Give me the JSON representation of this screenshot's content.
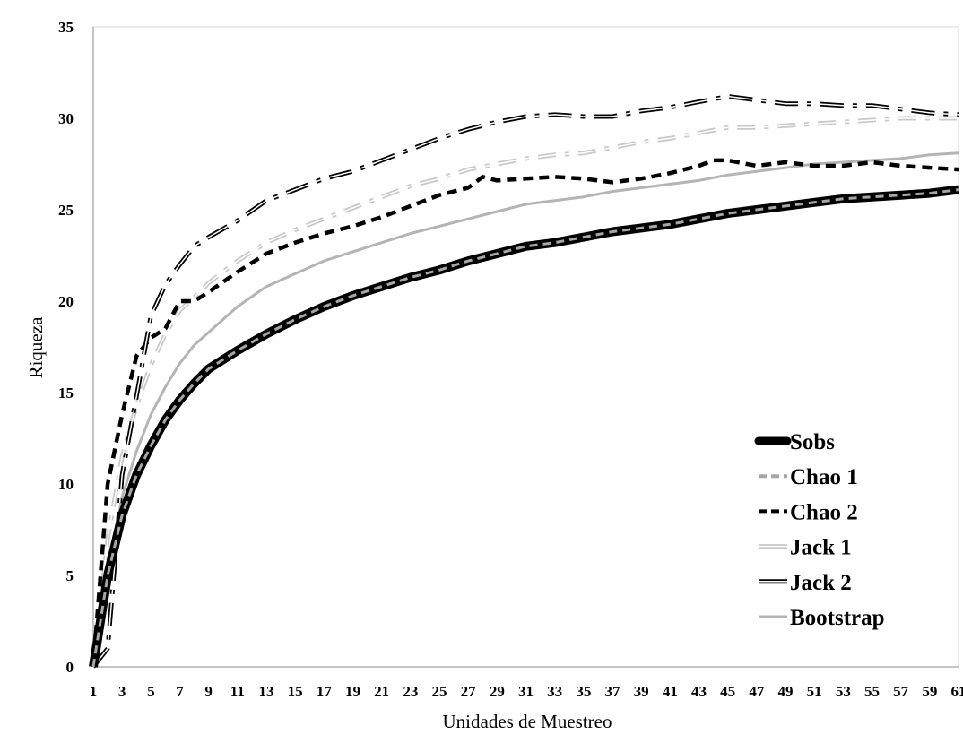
{
  "chart_data": {
    "type": "line",
    "xlabel": "Unidades de Muestreo",
    "ylabel": "Riqueza",
    "ylim": [
      0,
      35
    ],
    "yticks": [
      0,
      5,
      10,
      15,
      20,
      25,
      30,
      35
    ],
    "xlim": [
      1,
      61
    ],
    "xticks": [
      1,
      3,
      5,
      7,
      9,
      11,
      13,
      15,
      17,
      19,
      21,
      23,
      25,
      27,
      29,
      31,
      33,
      35,
      37,
      39,
      41,
      43,
      45,
      47,
      49,
      51,
      53,
      55,
      57,
      59,
      61
    ],
    "grid": false,
    "legend": "bottom-right",
    "series": [
      {
        "name": "Sobs",
        "style": "sobs",
        "color": "#000000",
        "points": [
          [
            1,
            0
          ],
          [
            2,
            5
          ],
          [
            3,
            8.3
          ],
          [
            4,
            10.5
          ],
          [
            5,
            12.1
          ],
          [
            6,
            13.5
          ],
          [
            7,
            14.6
          ],
          [
            8,
            15.5
          ],
          [
            9,
            16.3
          ],
          [
            11,
            17.3
          ],
          [
            13,
            18.2
          ],
          [
            15,
            19
          ],
          [
            17,
            19.7
          ],
          [
            19,
            20.3
          ],
          [
            21,
            20.8
          ],
          [
            23,
            21.3
          ],
          [
            25,
            21.7
          ],
          [
            27,
            22.2
          ],
          [
            29,
            22.6
          ],
          [
            31,
            23
          ],
          [
            33,
            23.2
          ],
          [
            35,
            23.5
          ],
          [
            37,
            23.8
          ],
          [
            39,
            24
          ],
          [
            41,
            24.2
          ],
          [
            43,
            24.5
          ],
          [
            45,
            24.8
          ],
          [
            47,
            25
          ],
          [
            49,
            25.2
          ],
          [
            51,
            25.4
          ],
          [
            53,
            25.6
          ],
          [
            55,
            25.7
          ],
          [
            57,
            25.8
          ],
          [
            59,
            25.9
          ],
          [
            61,
            26.1
          ]
        ]
      },
      {
        "name": "Chao 1",
        "style": "chao1",
        "color": "#a6a6a6",
        "points": [
          [
            1,
            0
          ],
          [
            2,
            5
          ],
          [
            3,
            8.3
          ],
          [
            4,
            10.5
          ],
          [
            5,
            12.1
          ],
          [
            6,
            13.5
          ],
          [
            7,
            14.6
          ],
          [
            8,
            15.5
          ],
          [
            9,
            16.3
          ],
          [
            11,
            17.3
          ],
          [
            13,
            18.2
          ],
          [
            15,
            19
          ],
          [
            17,
            19.7
          ],
          [
            19,
            20.3
          ],
          [
            21,
            20.8
          ],
          [
            23,
            21.3
          ],
          [
            25,
            21.7
          ],
          [
            27,
            22.2
          ],
          [
            29,
            22.6
          ],
          [
            31,
            23
          ],
          [
            33,
            23.2
          ],
          [
            35,
            23.5
          ],
          [
            37,
            23.8
          ],
          [
            39,
            24
          ],
          [
            41,
            24.2
          ],
          [
            43,
            24.5
          ],
          [
            45,
            24.8
          ],
          [
            47,
            25
          ],
          [
            49,
            25.2
          ],
          [
            51,
            25.4
          ],
          [
            53,
            25.6
          ],
          [
            55,
            25.7
          ],
          [
            57,
            25.8
          ],
          [
            59,
            25.9
          ],
          [
            61,
            26.1
          ]
        ]
      },
      {
        "name": "Chao 2",
        "style": "chao2",
        "color": "#000000",
        "points": [
          [
            1,
            0
          ],
          [
            2,
            10
          ],
          [
            3,
            13.8
          ],
          [
            4,
            17
          ],
          [
            5,
            18
          ],
          [
            6,
            18.5
          ],
          [
            7,
            20
          ],
          [
            8,
            20
          ],
          [
            9,
            20.5
          ],
          [
            11,
            21.6
          ],
          [
            13,
            22.6
          ],
          [
            15,
            23.2
          ],
          [
            17,
            23.7
          ],
          [
            19,
            24.1
          ],
          [
            21,
            24.6
          ],
          [
            23,
            25.2
          ],
          [
            25,
            25.8
          ],
          [
            27,
            26.2
          ],
          [
            28,
            26.8
          ],
          [
            29,
            26.6
          ],
          [
            31,
            26.7
          ],
          [
            33,
            26.8
          ],
          [
            35,
            26.7
          ],
          [
            37,
            26.5
          ],
          [
            39,
            26.7
          ],
          [
            41,
            27
          ],
          [
            43,
            27.4
          ],
          [
            44,
            27.7
          ],
          [
            45,
            27.7
          ],
          [
            47,
            27.4
          ],
          [
            49,
            27.6
          ],
          [
            51,
            27.4
          ],
          [
            53,
            27.4
          ],
          [
            55,
            27.6
          ],
          [
            57,
            27.4
          ],
          [
            59,
            27.3
          ],
          [
            61,
            27.2
          ]
        ]
      },
      {
        "name": "Jack 1",
        "style": "jack1",
        "color": "#c8c8c8",
        "points": [
          [
            1,
            0
          ],
          [
            2,
            7
          ],
          [
            3,
            11.5
          ],
          [
            4,
            14.3
          ],
          [
            5,
            16.5
          ],
          [
            6,
            18.2
          ],
          [
            7,
            19.5
          ],
          [
            8,
            20.2
          ],
          [
            9,
            21
          ],
          [
            11,
            22.2
          ],
          [
            13,
            23.2
          ],
          [
            15,
            23.9
          ],
          [
            17,
            24.5
          ],
          [
            19,
            25.1
          ],
          [
            21,
            25.7
          ],
          [
            23,
            26.3
          ],
          [
            25,
            26.7
          ],
          [
            27,
            27.2
          ],
          [
            29,
            27.5
          ],
          [
            31,
            27.8
          ],
          [
            33,
            28
          ],
          [
            35,
            28.1
          ],
          [
            37,
            28.4
          ],
          [
            39,
            28.7
          ],
          [
            41,
            28.9
          ],
          [
            43,
            29.2
          ],
          [
            45,
            29.5
          ],
          [
            47,
            29.5
          ],
          [
            49,
            29.6
          ],
          [
            51,
            29.7
          ],
          [
            53,
            29.8
          ],
          [
            55,
            29.9
          ],
          [
            57,
            30
          ],
          [
            59,
            30
          ],
          [
            61,
            30
          ]
        ]
      },
      {
        "name": "Jack 2",
        "style": "jack2",
        "color": "#000000",
        "points": [
          [
            1,
            0
          ],
          [
            2,
            1
          ],
          [
            3,
            10.5
          ],
          [
            4,
            14.8
          ],
          [
            5,
            19.2
          ],
          [
            6,
            20.9
          ],
          [
            7,
            22
          ],
          [
            8,
            23
          ],
          [
            9,
            23.5
          ],
          [
            11,
            24.4
          ],
          [
            13,
            25.5
          ],
          [
            15,
            26.1
          ],
          [
            17,
            26.7
          ],
          [
            19,
            27.1
          ],
          [
            21,
            27.7
          ],
          [
            23,
            28.3
          ],
          [
            25,
            28.9
          ],
          [
            27,
            29.4
          ],
          [
            29,
            29.8
          ],
          [
            31,
            30.1
          ],
          [
            33,
            30.2
          ],
          [
            35,
            30.1
          ],
          [
            37,
            30.1
          ],
          [
            39,
            30.4
          ],
          [
            41,
            30.6
          ],
          [
            43,
            30.9
          ],
          [
            45,
            31.2
          ],
          [
            47,
            31
          ],
          [
            49,
            30.8
          ],
          [
            51,
            30.8
          ],
          [
            53,
            30.7
          ],
          [
            55,
            30.7
          ],
          [
            57,
            30.5
          ],
          [
            59,
            30.3
          ],
          [
            61,
            30.2
          ]
        ]
      },
      {
        "name": "Bootstrap",
        "style": "bootstrap",
        "color": "#b4b4b4",
        "points": [
          [
            1,
            0
          ],
          [
            2,
            5
          ],
          [
            3,
            9.3
          ],
          [
            4,
            11.8
          ],
          [
            5,
            13.8
          ],
          [
            6,
            15.3
          ],
          [
            7,
            16.6
          ],
          [
            8,
            17.6
          ],
          [
            9,
            18.3
          ],
          [
            11,
            19.7
          ],
          [
            13,
            20.8
          ],
          [
            15,
            21.5
          ],
          [
            17,
            22.2
          ],
          [
            19,
            22.7
          ],
          [
            21,
            23.2
          ],
          [
            23,
            23.7
          ],
          [
            25,
            24.1
          ],
          [
            27,
            24.5
          ],
          [
            29,
            24.9
          ],
          [
            31,
            25.3
          ],
          [
            33,
            25.5
          ],
          [
            35,
            25.7
          ],
          [
            37,
            26
          ],
          [
            39,
            26.2
          ],
          [
            41,
            26.4
          ],
          [
            43,
            26.6
          ],
          [
            45,
            26.9
          ],
          [
            47,
            27.1
          ],
          [
            49,
            27.3
          ],
          [
            51,
            27.5
          ],
          [
            53,
            27.6
          ],
          [
            55,
            27.7
          ],
          [
            57,
            27.8
          ],
          [
            59,
            28
          ],
          [
            61,
            28.1
          ]
        ]
      }
    ]
  }
}
